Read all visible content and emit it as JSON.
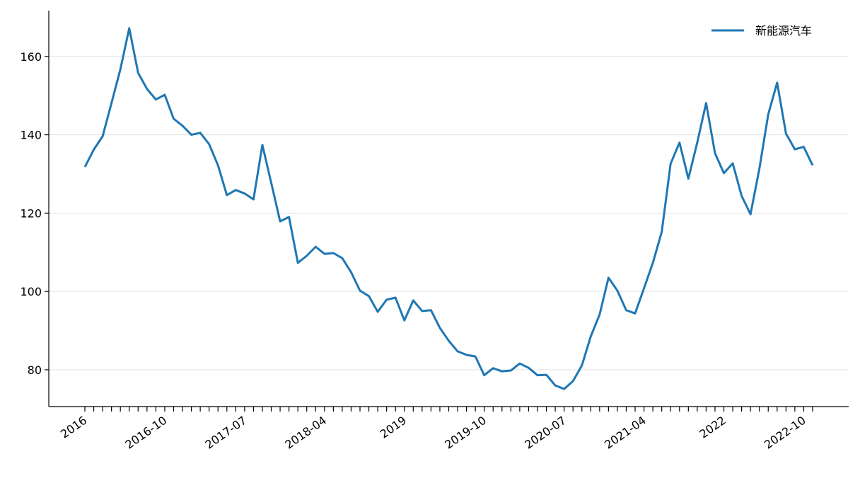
{
  "chart_data": {
    "type": "line",
    "categories": [
      "2016",
      null,
      null,
      null,
      null,
      null,
      null,
      null,
      null,
      "2016-10",
      null,
      null,
      null,
      null,
      null,
      null,
      null,
      null,
      "2017-07",
      null,
      null,
      null,
      null,
      null,
      null,
      null,
      null,
      "2018-04",
      null,
      null,
      null,
      null,
      null,
      null,
      null,
      null,
      "2019",
      null,
      null,
      null,
      null,
      null,
      null,
      null,
      null,
      "2019-10",
      null,
      null,
      null,
      null,
      null,
      null,
      null,
      null,
      "2020-07",
      null,
      null,
      null,
      null,
      null,
      null,
      null,
      null,
      "2021-04",
      null,
      null,
      null,
      null,
      null,
      null,
      null,
      null,
      "2022",
      null,
      null,
      null,
      null,
      null,
      null,
      null,
      null,
      "2022-10",
      null
    ],
    "series": [
      {
        "name": "新能源汽车",
        "color": "#1f77b4",
        "values": [
          131.8,
          136.2,
          139.6,
          148.1,
          156.7,
          167.2,
          155.8,
          151.7,
          149.0,
          150.2,
          144.1,
          142.3,
          140.0,
          140.5,
          137.6,
          132.2,
          124.6,
          125.9,
          125.0,
          123.5,
          137.4,
          127.7,
          117.9,
          119.0,
          107.3,
          109.1,
          111.4,
          109.6,
          109.8,
          108.5,
          104.9,
          100.2,
          98.8,
          94.8,
          97.9,
          98.4,
          92.6,
          97.7,
          95.0,
          95.2,
          90.7,
          87.4,
          84.7,
          83.8,
          83.4,
          78.6,
          80.4,
          79.6,
          79.8,
          81.6,
          80.5,
          78.6,
          78.7,
          76.0,
          75.1,
          77.1,
          81.1,
          88.5,
          94.1,
          103.5,
          100.2,
          95.2,
          94.4,
          100.8,
          107.3,
          115.2,
          132.6,
          138.0,
          128.8,
          138.0,
          148.1,
          135.3,
          130.2,
          132.7,
          124.4,
          119.7,
          131.3,
          145.2,
          153.3,
          140.3,
          136.3,
          136.9,
          132.2
        ]
      }
    ],
    "ylim": [
      70.6,
      171.7
    ],
    "yticks": [
      80,
      100,
      120,
      140,
      160
    ],
    "grid": true,
    "legend": "upper right"
  }
}
